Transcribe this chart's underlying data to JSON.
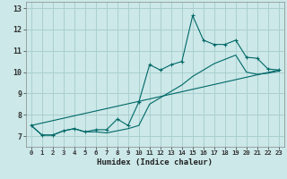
{
  "xlabel": "Humidex (Indice chaleur)",
  "background_color": "#cce8e8",
  "grid_color": "#aacfcf",
  "line_color": "#006868",
  "xlim": [
    -0.5,
    23.5
  ],
  "ylim": [
    6.5,
    13.3
  ],
  "yticks": [
    7,
    8,
    9,
    10,
    11,
    12,
    13
  ],
  "xticks": [
    0,
    1,
    2,
    3,
    4,
    5,
    6,
    7,
    8,
    9,
    10,
    11,
    12,
    13,
    14,
    15,
    16,
    17,
    18,
    19,
    20,
    21,
    22,
    23
  ],
  "main_x": [
    0,
    1,
    2,
    3,
    4,
    5,
    6,
    7,
    8,
    9,
    10,
    11,
    12,
    13,
    14,
    15,
    16,
    17,
    18,
    19,
    20,
    21,
    22,
    23
  ],
  "main_y": [
    7.5,
    7.05,
    7.05,
    7.25,
    7.35,
    7.2,
    7.3,
    7.3,
    7.8,
    7.5,
    8.6,
    10.35,
    10.1,
    10.35,
    10.5,
    12.65,
    11.5,
    11.3,
    11.3,
    11.5,
    10.7,
    10.65,
    10.15,
    10.1
  ],
  "trend_x": [
    0,
    23
  ],
  "trend_y": [
    7.5,
    10.1
  ],
  "lower_x": [
    0,
    1,
    2,
    3,
    4,
    5,
    6,
    7,
    8,
    9,
    10,
    11,
    12,
    13,
    14,
    15,
    16,
    17,
    18,
    19,
    20,
    21,
    22,
    23
  ],
  "lower_y": [
    7.5,
    7.05,
    7.05,
    7.25,
    7.35,
    7.2,
    7.2,
    7.15,
    7.25,
    7.35,
    7.5,
    8.5,
    8.8,
    9.1,
    9.4,
    9.8,
    10.1,
    10.4,
    10.6,
    10.8,
    10.0,
    9.9,
    9.95,
    10.05
  ]
}
